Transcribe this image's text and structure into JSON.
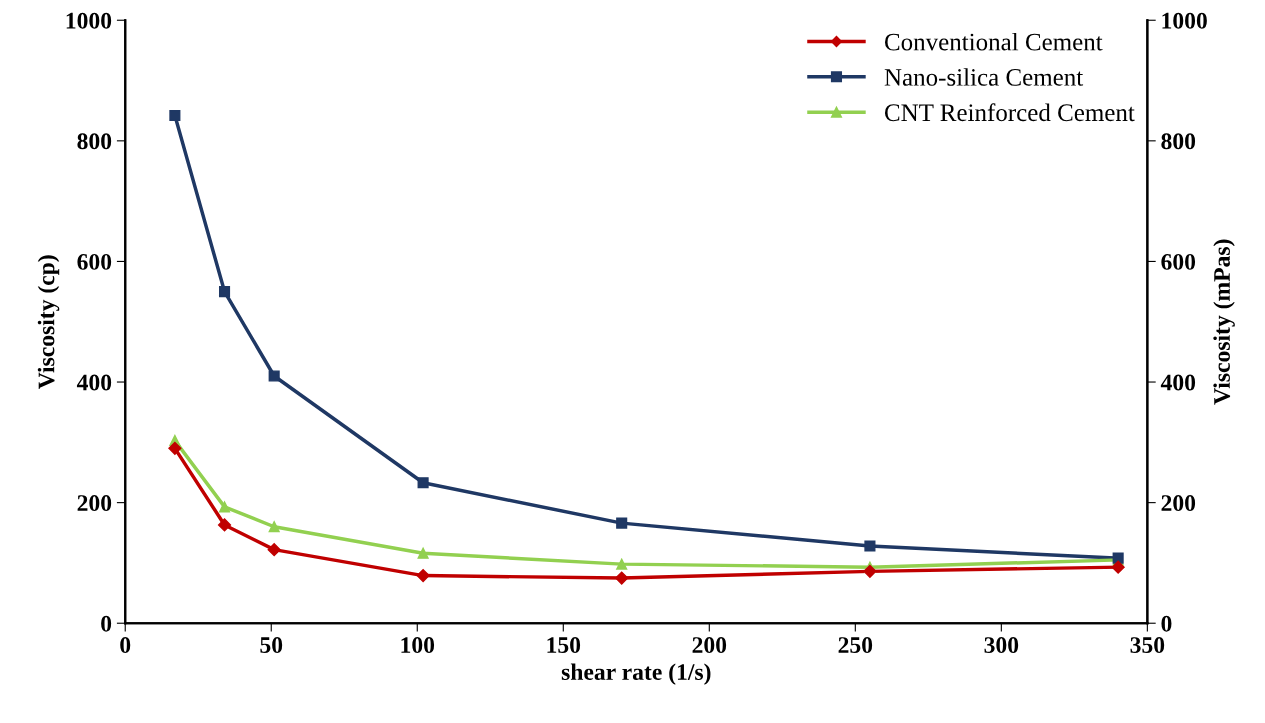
{
  "chart_data": {
    "type": "line",
    "xlabel": "shear rate (1/s)",
    "ylabel": "Viscosity (cp)",
    "y2label": "Viscosity (mPas)",
    "x": [
      17,
      34,
      51,
      102,
      170,
      255,
      340
    ],
    "series": [
      {
        "name": "Conventional Cement",
        "color": "#c00000",
        "marker": "diamond",
        "values": [
          290,
          163,
          122,
          79,
          75,
          86,
          93
        ]
      },
      {
        "name": "Nano-silica Cement",
        "color": "#1f3864",
        "marker": "square",
        "values": [
          842,
          550,
          410,
          233,
          166,
          128,
          108
        ]
      },
      {
        "name": "CNT Reinforced Cement",
        "color": "#92d050",
        "marker": "triangle",
        "values": [
          303,
          193,
          160,
          116,
          98,
          93,
          105
        ]
      }
    ],
    "xlim": [
      0,
      350
    ],
    "xticks": [
      0,
      50,
      100,
      150,
      200,
      250,
      300,
      350
    ],
    "ylim": [
      0,
      1000
    ],
    "yticks": [
      0,
      200,
      400,
      600,
      800,
      1000
    ],
    "y2lim": [
      0,
      1000
    ],
    "y2ticks": [
      0,
      200,
      400,
      600,
      800,
      1000
    ],
    "grid": false,
    "legend": "top right",
    "line_style": "solid"
  }
}
